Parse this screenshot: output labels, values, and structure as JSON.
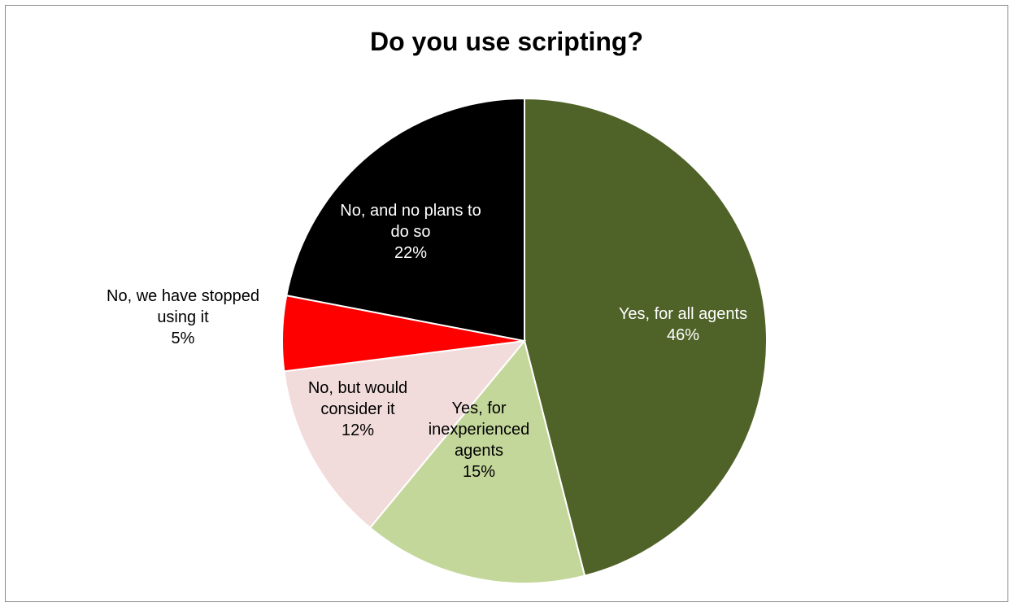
{
  "chart_data": {
    "type": "pie",
    "title": "Do you use scripting?",
    "slices": [
      {
        "lines": [
          "Yes, for all agents"
        ],
        "pct_label": "46%",
        "value": 46,
        "color": "#4f6228",
        "label_color": "#ffffff"
      },
      {
        "lines": [
          "Yes, for",
          "inexperienced",
          "agents"
        ],
        "pct_label": "15%",
        "value": 15,
        "color": "#c4d79b",
        "label_color": "#000000"
      },
      {
        "lines": [
          "No, but would",
          "consider it"
        ],
        "pct_label": "12%",
        "value": 12,
        "color": "#f2dcdb",
        "label_color": "#000000"
      },
      {
        "lines": [
          "No, we have stopped",
          "using it"
        ],
        "pct_label": "5%",
        "value": 5,
        "color": "#ff0000",
        "label_color": "#000000"
      },
      {
        "lines": [
          "No, and no plans to",
          "do so"
        ],
        "pct_label": "22%",
        "value": 22,
        "color": "#000000",
        "label_color": "#ffffff"
      }
    ],
    "start_angle_deg": 0,
    "direction": "clockwise",
    "legend": "none"
  }
}
